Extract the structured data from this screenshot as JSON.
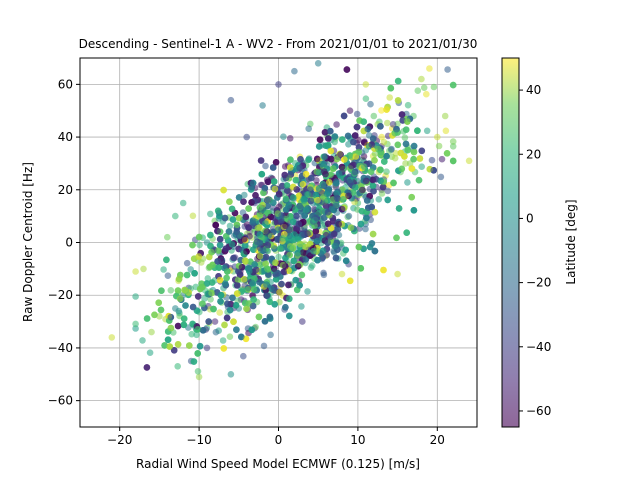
{
  "chart_data": {
    "type": "scatter",
    "title": "Descending - Sentinel-1 A - WV2 - From 2021/01/01 to 2021/01/30",
    "xlabel": "Radial Wind Speed Model ECMWF (0.125) [m/s]",
    "ylabel": "Raw Doppler Centroid [Hz]",
    "xlim": [
      -25,
      25
    ],
    "ylim": [
      -70,
      70
    ],
    "xticks": [
      -20,
      -10,
      0,
      10,
      20
    ],
    "yticks": [
      -60,
      -40,
      -20,
      0,
      20,
      40,
      60
    ],
    "grid": true,
    "colorbar": {
      "label": "Latitude [deg]",
      "range": [
        -65,
        50
      ],
      "ticks": [
        -60,
        -40,
        -20,
        0,
        20,
        40
      ],
      "colormap": "viridis",
      "alpha": 0.6
    },
    "point_alpha": 0.55,
    "approx_relation": "doppler ≈ 2.1 × wind + 2, spread ≈ ±15 Hz",
    "points": [
      [
        -21,
        -36,
        45
      ],
      [
        -18,
        -11,
        45
      ],
      [
        -17,
        -10,
        42
      ],
      [
        -16,
        -34,
        40
      ],
      [
        -15,
        -28,
        40
      ],
      [
        -14,
        2,
        35
      ],
      [
        -13,
        10,
        20
      ],
      [
        -12,
        15,
        15
      ],
      [
        -13,
        -25,
        -5
      ],
      [
        -12,
        -20,
        -10
      ],
      [
        -11,
        -45,
        -30
      ],
      [
        -10,
        -51,
        40
      ],
      [
        -9,
        -40,
        -40
      ],
      [
        -8,
        -30,
        -50
      ],
      [
        -7,
        -20,
        10
      ],
      [
        -6,
        -50,
        0
      ],
      [
        -6,
        54,
        -30
      ],
      [
        -5,
        -10,
        -60
      ],
      [
        -4,
        40,
        -35
      ],
      [
        -3,
        5,
        20
      ],
      [
        -2,
        52,
        -10
      ],
      [
        -1,
        -35,
        -20
      ],
      [
        0,
        60,
        -40
      ],
      [
        1,
        20,
        10
      ],
      [
        2,
        65,
        -20
      ],
      [
        3,
        -30,
        -45
      ],
      [
        4,
        45,
        30
      ],
      [
        5,
        68,
        -10
      ],
      [
        6,
        -5,
        40
      ],
      [
        7,
        30,
        -50
      ],
      [
        8,
        -12,
        45
      ],
      [
        9,
        50,
        -60
      ],
      [
        10,
        15,
        25
      ],
      [
        11,
        60,
        45
      ],
      [
        12,
        25,
        -30
      ],
      [
        13,
        40,
        48
      ],
      [
        14,
        55,
        45
      ],
      [
        15,
        -12,
        45
      ],
      [
        16,
        30,
        40
      ],
      [
        17,
        48,
        30
      ],
      [
        18,
        62,
        42
      ],
      [
        19,
        66,
        48
      ],
      [
        20,
        40,
        45
      ],
      [
        21,
        48,
        40
      ],
      [
        24,
        31,
        45
      ],
      [
        -9,
        0,
        0
      ],
      [
        -7,
        8,
        10
      ],
      [
        -5,
        -25,
        -5
      ],
      [
        -3,
        15,
        -40
      ],
      [
        -1,
        -15,
        5
      ],
      [
        1,
        5,
        -55
      ],
      [
        3,
        30,
        -25
      ],
      [
        5,
        10,
        -35
      ],
      [
        7,
        40,
        20
      ],
      [
        9,
        25,
        -45
      ],
      [
        11,
        35,
        0
      ],
      [
        13,
        20,
        -50
      ],
      [
        15,
        45,
        35
      ],
      [
        17,
        35,
        -20
      ],
      [
        12,
        48,
        30
      ]
    ]
  }
}
